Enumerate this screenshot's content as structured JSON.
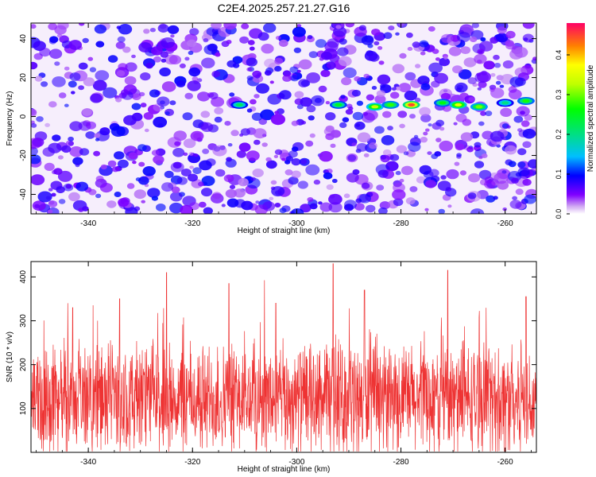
{
  "title": "C2E4.2025.257.21.27.G16",
  "chart_data": [
    {
      "type": "heatmap",
      "title": "C2E4.2025.257.21.27.G16",
      "xlabel": "Height of straight line (km)",
      "ylabel": "Frequency (Hz)",
      "xlim": [
        -351,
        -254
      ],
      "ylim": [
        -50,
        48
      ],
      "x_ticks": [
        -340,
        -320,
        -300,
        -280,
        -260
      ],
      "y_ticks": [
        40,
        20,
        0,
        -20,
        -40
      ],
      "colorbar": {
        "label": "Normalized spectral amplitude",
        "range": [
          0.0,
          0.48
        ],
        "ticks": [
          0.0,
          0.1,
          0.2,
          0.3,
          0.4
        ]
      },
      "signal_blobs": [
        {
          "x": -311,
          "y": 6,
          "amp": 0.22
        },
        {
          "x": -292,
          "y": 6,
          "amp": 0.25
        },
        {
          "x": -285,
          "y": 5,
          "amp": 0.33
        },
        {
          "x": -282,
          "y": 6,
          "amp": 0.28
        },
        {
          "x": -278,
          "y": 6,
          "amp": 0.45
        },
        {
          "x": -272,
          "y": 7,
          "amp": 0.26
        },
        {
          "x": -269,
          "y": 6,
          "amp": 0.36
        },
        {
          "x": -265,
          "y": 5,
          "amp": 0.3
        },
        {
          "x": -260,
          "y": 7,
          "amp": 0.2
        },
        {
          "x": -256,
          "y": 8,
          "amp": 0.27
        }
      ]
    },
    {
      "type": "line",
      "xlabel": "Height of straight line (km)",
      "ylabel": "SNR (10 * v/v)",
      "xlim": [
        -351,
        -254
      ],
      "ylim": [
        0,
        435
      ],
      "x_ticks": [
        -340,
        -320,
        -300,
        -280,
        -260
      ],
      "y_ticks": [
        100,
        200,
        300,
        400
      ],
      "series_color": "#ee3333",
      "baseline_mean": 120,
      "peaks": [
        {
          "x": -325,
          "y": 410
        },
        {
          "x": -313,
          "y": 385
        },
        {
          "x": -293,
          "y": 430
        },
        {
          "x": -287,
          "y": 370
        },
        {
          "x": -271,
          "y": 415
        },
        {
          "x": -334,
          "y": 350
        },
        {
          "x": -256,
          "y": 355
        },
        {
          "x": -343,
          "y": 330
        },
        {
          "x": -304,
          "y": 340
        }
      ]
    }
  ]
}
